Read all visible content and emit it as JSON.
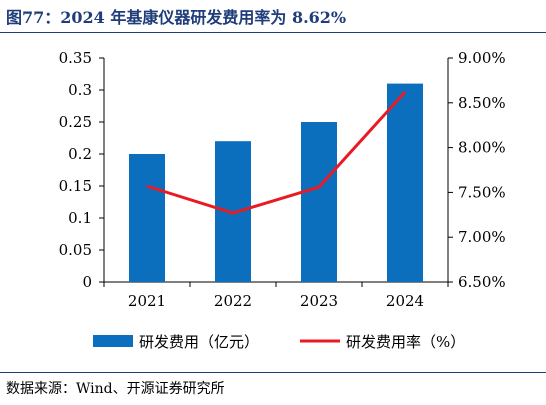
{
  "page": {
    "title": "图77：2024 年基康仪器研发费用率为 8.62%",
    "source": "数据来源：Wind、开源证券研究所"
  },
  "colors": {
    "bar": "#0b6fbd",
    "line": "#e81b23",
    "title": "#1f3d7a",
    "axis": "#000000"
  },
  "chart_data": {
    "type": "bar",
    "combo": "bar-with-line-on-secondary-axis",
    "categories": [
      "2021",
      "2022",
      "2023",
      "2024"
    ],
    "series": [
      {
        "name": "研发费用（亿元）",
        "type": "bar",
        "axis": "left",
        "values": [
          0.2,
          0.22,
          0.25,
          0.31
        ]
      },
      {
        "name": "研发费用率（%）",
        "type": "line",
        "axis": "right",
        "values": [
          7.57,
          7.27,
          7.56,
          8.62
        ]
      }
    ],
    "y_left": {
      "ylim": [
        0,
        0.35
      ],
      "ticks": [
        "0",
        "0.05",
        "0.1",
        "0.15",
        "0.2",
        "0.25",
        "0.3",
        "0.35"
      ]
    },
    "y_right": {
      "ylim": [
        6.5,
        9.0
      ],
      "ticks": [
        "6.50%",
        "7.00%",
        "7.50%",
        "8.00%",
        "8.50%",
        "9.00%"
      ]
    },
    "grid": false,
    "legend_position": "bottom"
  }
}
